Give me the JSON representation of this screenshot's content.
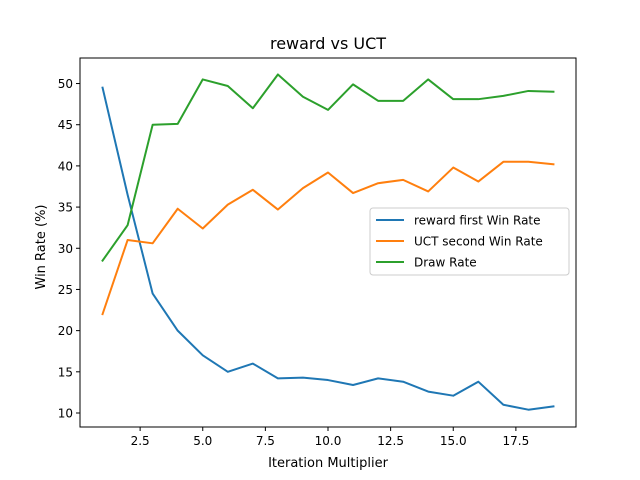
{
  "chart_data": {
    "type": "line",
    "title": "reward vs UCT",
    "xlabel": "Iteration Multiplier",
    "ylabel": "Win Rate (%)",
    "xlim": [
      0.1,
      19.9
    ],
    "ylim": [
      8.3,
      53.1
    ],
    "xticks": [
      2.5,
      5.0,
      7.5,
      10.0,
      12.5,
      15.0,
      17.5
    ],
    "xtick_labels": [
      "2.5",
      "5.0",
      "7.5",
      "10.0",
      "12.5",
      "15.0",
      "17.5"
    ],
    "yticks": [
      10,
      15,
      20,
      25,
      30,
      35,
      40,
      45,
      50
    ],
    "ytick_labels": [
      "10",
      "15",
      "20",
      "25",
      "30",
      "35",
      "40",
      "45",
      "50"
    ],
    "grid": false,
    "legend_position": "center-right",
    "x": [
      1,
      2,
      3,
      4,
      5,
      6,
      7,
      8,
      9,
      10,
      11,
      12,
      13,
      14,
      15,
      16,
      17,
      18,
      19
    ],
    "series": [
      {
        "name": "reward first Win Rate",
        "color": "#1f77b4",
        "values": [
          49.5,
          36.5,
          24.5,
          20.0,
          17.0,
          15.0,
          16.0,
          14.2,
          14.3,
          14.0,
          13.4,
          14.2,
          13.8,
          12.6,
          12.1,
          13.8,
          11.0,
          10.4,
          10.8
        ]
      },
      {
        "name": "UCT second Win Rate",
        "color": "#ff7f0e",
        "values": [
          22.0,
          31.0,
          30.6,
          34.8,
          32.4,
          35.3,
          37.1,
          34.7,
          37.3,
          39.2,
          36.7,
          37.9,
          38.3,
          36.9,
          39.8,
          38.1,
          40.5,
          40.5,
          40.2
        ]
      },
      {
        "name": "Draw Rate",
        "color": "#2ca02c",
        "values": [
          28.5,
          32.8,
          45.0,
          45.1,
          50.5,
          49.7,
          47.0,
          51.1,
          48.4,
          46.8,
          49.9,
          47.9,
          47.9,
          50.5,
          48.1,
          48.1,
          48.5,
          49.1,
          49.0
        ]
      }
    ]
  }
}
